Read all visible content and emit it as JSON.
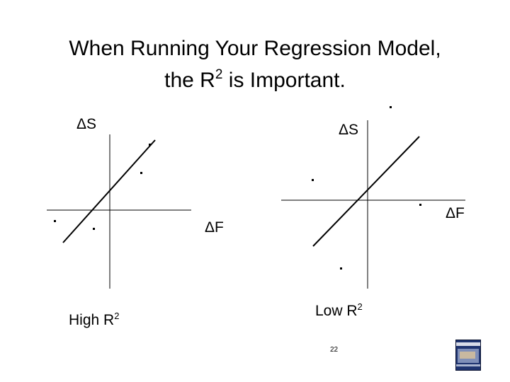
{
  "title": {
    "line1": "When Running Your Regression Model,",
    "line2_pre": "the R",
    "line2_sup": "2",
    "line2_post": " is Important."
  },
  "left_panel": {
    "y_axis_label": "ΔS",
    "x_axis_label": "ΔF",
    "caption_pre": "High R",
    "caption_sup": "2"
  },
  "right_panel": {
    "y_axis_label": "ΔS",
    "x_axis_label": "ΔF",
    "caption_pre": "Low R",
    "caption_sup": "2"
  },
  "page_number": "22"
}
